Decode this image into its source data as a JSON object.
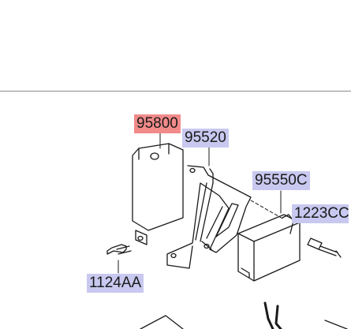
{
  "diagram": {
    "part_labels": [
      {
        "id": "95800",
        "text": "95800",
        "highlighted": true
      },
      {
        "id": "95520",
        "text": "95520",
        "highlighted": false
      },
      {
        "id": "95550C",
        "text": "95550C",
        "highlighted": false
      },
      {
        "id": "1223CC",
        "text": "1223CC",
        "highlighted": false
      },
      {
        "id": "1124AA",
        "text": "1124AA",
        "highlighted": false
      }
    ]
  },
  "colors": {
    "label_background": "#c8c8f0",
    "highlighted_label_background": "#f28a8a",
    "line": "#1a1a1a"
  }
}
